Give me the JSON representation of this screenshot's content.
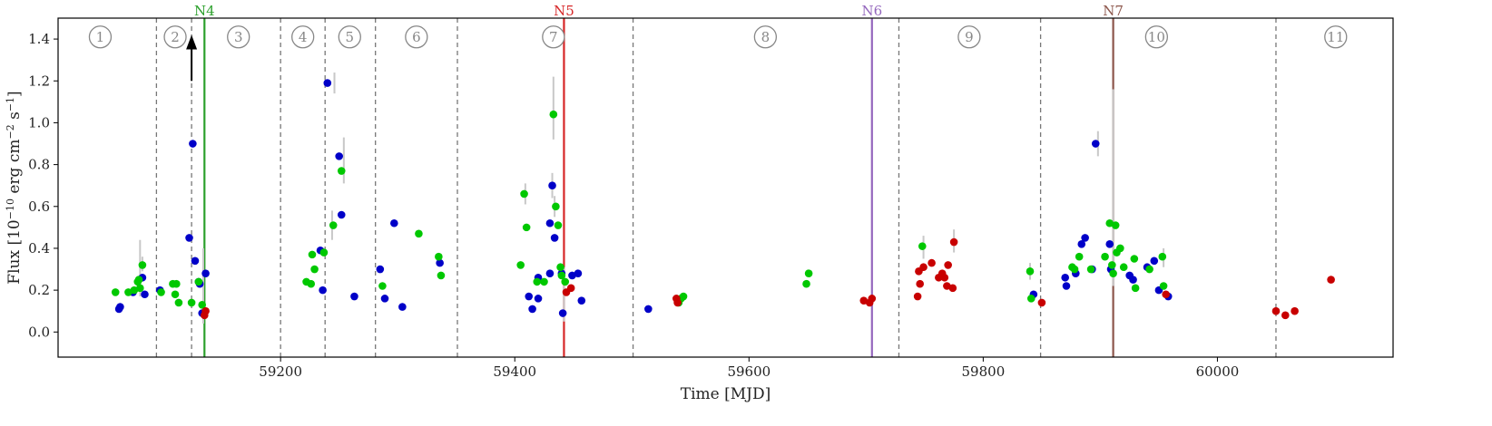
{
  "chart_data": {
    "type": "scatter",
    "title": "",
    "xlabel": "Time [MJD]",
    "ylabel_base": "Flux [10",
    "ylabel_exp1": "−10",
    "ylabel_mid": " erg cm",
    "ylabel_exp2": "−2",
    "ylabel_mid2": " s",
    "ylabel_exp3": "−1",
    "ylabel_end": "]",
    "xlim": [
      59010,
      60150
    ],
    "ylim": [
      -0.12,
      1.5
    ],
    "xticks": [
      59200,
      59400,
      59600,
      59800,
      60000
    ],
    "xtick_labels": [
      "59200",
      "59400",
      "59600",
      "59800",
      "60000"
    ],
    "yticks": [
      0.0,
      0.2,
      0.4,
      0.6,
      0.8,
      1.0,
      1.2,
      1.4
    ],
    "ytick_labels": [
      "0.0",
      "0.2",
      "0.4",
      "0.6",
      "0.8",
      "1.0",
      "1.2",
      "1.4"
    ],
    "zone_boundaries": [
      59094,
      59124,
      59200,
      59238,
      59281,
      59351,
      59501,
      59728,
      59849,
      60050
    ],
    "zones": [
      {
        "label": "1",
        "x": 59046
      },
      {
        "label": "2",
        "x": 59110
      },
      {
        "label": "3",
        "x": 59164
      },
      {
        "label": "4",
        "x": 59219
      },
      {
        "label": "5",
        "x": 59259
      },
      {
        "label": "6",
        "x": 59316
      },
      {
        "label": "7",
        "x": 59433
      },
      {
        "label": "8",
        "x": 59614
      },
      {
        "label": "9",
        "x": 59788
      },
      {
        "label": "10",
        "x": 59948
      },
      {
        "label": "11",
        "x": 60101
      }
    ],
    "zone_label_y": 1.41,
    "novae": [
      {
        "label": "N4",
        "x": 59135,
        "color": "#2ca02c"
      },
      {
        "label": "N5",
        "x": 59442,
        "color": "#d62728"
      },
      {
        "label": "N6",
        "x": 59705,
        "color": "#9467bd"
      },
      {
        "label": "N7",
        "x": 59911,
        "color": "#8c564b"
      }
    ],
    "upper_limit_arrow": {
      "x": 59124,
      "y_from": 1.2,
      "y_to": 1.42
    },
    "series": [
      {
        "name": "blue",
        "color": "#0000c8",
        "points": [
          [
            59062,
            0.11
          ],
          [
            59063,
            0.12
          ],
          [
            59074,
            0.19
          ],
          [
            59082,
            0.26
          ],
          [
            59084,
            0.18
          ],
          [
            59097,
            0.2
          ],
          [
            59122,
            0.45
          ],
          [
            59125,
            0.9
          ],
          [
            59127,
            0.34
          ],
          [
            59130,
            0.24
          ],
          [
            59131,
            0.23
          ],
          [
            59133,
            0.09
          ],
          [
            59136,
            0.28
          ],
          [
            59234,
            0.39
          ],
          [
            59236,
            0.2
          ],
          [
            59240,
            1.19
          ],
          [
            59250,
            0.84
          ],
          [
            59252,
            0.56
          ],
          [
            59263,
            0.17
          ],
          [
            59285,
            0.3
          ],
          [
            59289,
            0.16
          ],
          [
            59297,
            0.52
          ],
          [
            59304,
            0.12
          ],
          [
            59336,
            0.33
          ],
          [
            59412,
            0.17
          ],
          [
            59415,
            0.11
          ],
          [
            59420,
            0.16
          ],
          [
            59420,
            0.26
          ],
          [
            59430,
            0.28
          ],
          [
            59430,
            0.52
          ],
          [
            59432,
            0.7
          ],
          [
            59434,
            0.45
          ],
          [
            59440,
            0.28
          ],
          [
            59441,
            0.09
          ],
          [
            59449,
            0.27
          ],
          [
            59454,
            0.28
          ],
          [
            59457,
            0.15
          ],
          [
            59514,
            0.11
          ],
          [
            59843,
            0.18
          ],
          [
            59870,
            0.26
          ],
          [
            59871,
            0.22
          ],
          [
            59879,
            0.28
          ],
          [
            59884,
            0.42
          ],
          [
            59887,
            0.45
          ],
          [
            59893,
            0.3
          ],
          [
            59896,
            0.9
          ],
          [
            59908,
            0.42
          ],
          [
            59909,
            0.3
          ],
          [
            59925,
            0.27
          ],
          [
            59928,
            0.25
          ],
          [
            59940,
            0.31
          ],
          [
            59946,
            0.34
          ],
          [
            59950,
            0.2
          ],
          [
            59958,
            0.17
          ]
        ]
      },
      {
        "name": "green",
        "color": "#00c800",
        "points": [
          [
            59059,
            0.19
          ],
          [
            59070,
            0.19
          ],
          [
            59075,
            0.2
          ],
          [
            59078,
            0.24
          ],
          [
            59079,
            0.25
          ],
          [
            59080,
            0.21
          ],
          [
            59082,
            0.32
          ],
          [
            59098,
            0.19
          ],
          [
            59108,
            0.23
          ],
          [
            59110,
            0.18
          ],
          [
            59111,
            0.23
          ],
          [
            59113,
            0.14
          ],
          [
            59124,
            0.14
          ],
          [
            59130,
            0.24
          ],
          [
            59133,
            0.13
          ],
          [
            59222,
            0.24
          ],
          [
            59226,
            0.23
          ],
          [
            59227,
            0.37
          ],
          [
            59229,
            0.3
          ],
          [
            59237,
            0.38
          ],
          [
            59245,
            0.51
          ],
          [
            59252,
            0.77
          ],
          [
            59287,
            0.22
          ],
          [
            59318,
            0.47
          ],
          [
            59335,
            0.36
          ],
          [
            59337,
            0.27
          ],
          [
            59405,
            0.32
          ],
          [
            59408,
            0.66
          ],
          [
            59410,
            0.5
          ],
          [
            59419,
            0.24
          ],
          [
            59425,
            0.24
          ],
          [
            59433,
            1.04
          ],
          [
            59435,
            0.6
          ],
          [
            59437,
            0.51
          ],
          [
            59439,
            0.31
          ],
          [
            59440,
            0.27
          ],
          [
            59443,
            0.24
          ],
          [
            59540,
            0.14
          ],
          [
            59542,
            0.16
          ],
          [
            59544,
            0.17
          ],
          [
            59649,
            0.23
          ],
          [
            59651,
            0.28
          ],
          [
            59748,
            0.41
          ],
          [
            59840,
            0.29
          ],
          [
            59841,
            0.16
          ],
          [
            59876,
            0.31
          ],
          [
            59878,
            0.3
          ],
          [
            59882,
            0.36
          ],
          [
            59892,
            0.3
          ],
          [
            59904,
            0.36
          ],
          [
            59908,
            0.52
          ],
          [
            59910,
            0.32
          ],
          [
            59911,
            0.28
          ],
          [
            59913,
            0.51
          ],
          [
            59914,
            0.38
          ],
          [
            59917,
            0.4
          ],
          [
            59920,
            0.31
          ],
          [
            59929,
            0.35
          ],
          [
            59930,
            0.21
          ],
          [
            59942,
            0.3
          ],
          [
            59953,
            0.36
          ],
          [
            59954,
            0.22
          ]
        ]
      },
      {
        "name": "red",
        "color": "#c80000",
        "points": [
          [
            59135,
            0.08
          ],
          [
            59136,
            0.1
          ],
          [
            59444,
            0.19
          ],
          [
            59448,
            0.21
          ],
          [
            59538,
            0.16
          ],
          [
            59539,
            0.14
          ],
          [
            59698,
            0.15
          ],
          [
            59703,
            0.14
          ],
          [
            59705,
            0.16
          ],
          [
            59744,
            0.17
          ],
          [
            59745,
            0.29
          ],
          [
            59746,
            0.23
          ],
          [
            59749,
            0.31
          ],
          [
            59756,
            0.33
          ],
          [
            59762,
            0.26
          ],
          [
            59765,
            0.28
          ],
          [
            59767,
            0.26
          ],
          [
            59769,
            0.22
          ],
          [
            59770,
            0.32
          ],
          [
            59774,
            0.21
          ],
          [
            59775,
            0.43
          ],
          [
            59850,
            0.14
          ],
          [
            59956,
            0.18
          ],
          [
            60050,
            0.1
          ],
          [
            60058,
            0.08
          ],
          [
            60066,
            0.1
          ],
          [
            60097,
            0.25
          ]
        ]
      }
    ],
    "error_bars": [
      [
        59080,
        0.17,
        0.44
      ],
      [
        59082,
        0.29,
        0.36
      ],
      [
        59134,
        0.04,
        0.4
      ],
      [
        59244,
        0.44,
        0.58
      ],
      [
        59246,
        1.14,
        1.24
      ],
      [
        59254,
        0.71,
        0.93
      ],
      [
        59409,
        0.61,
        0.71
      ],
      [
        59433,
        0.92,
        1.22
      ],
      [
        59434,
        0.55,
        0.65
      ],
      [
        59432,
        0.64,
        0.76
      ],
      [
        59442,
        0.05,
        0.31
      ],
      [
        59749,
        0.35,
        0.46
      ],
      [
        59775,
        0.38,
        0.49
      ],
      [
        59911,
        0.22,
        1.16
      ],
      [
        59898,
        0.84,
        0.96
      ],
      [
        59954,
        0.31,
        0.4
      ],
      [
        59840,
        0.25,
        0.33
      ]
    ]
  }
}
